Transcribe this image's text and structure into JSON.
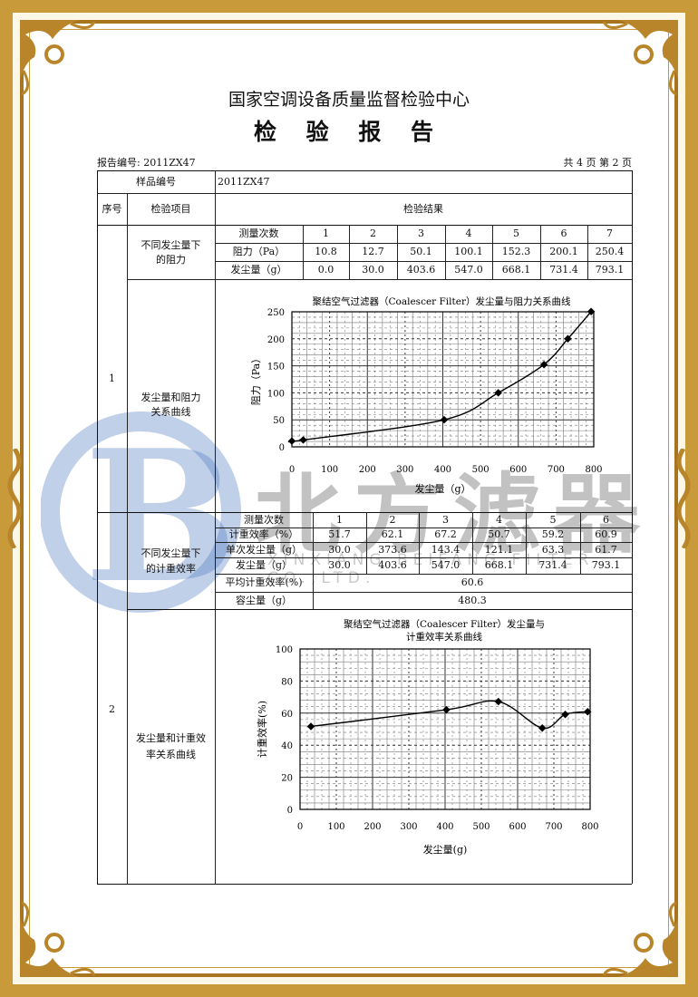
{
  "header": {
    "organization": "国家空调设备质量监督检验中心",
    "title": "检 验 报 告",
    "report_no": "报告编号: 2011ZX47",
    "page_info": "共 4 页 第 2 页"
  },
  "watermark": {
    "brand": "北方滤器",
    "company": "XINXIANG BEIFANG FILTER CO.,LTD."
  },
  "table": {
    "sample_no_label": "样品编号",
    "sample_no_value": "2011ZX47",
    "col_seq": "序号",
    "col_item": "检验项目",
    "col_result": "检验结果",
    "section1": {
      "seq": "1",
      "item1": "不同发尘量下\n的阻力",
      "item1_lines": [
        "不同发尘量下",
        "的阻力"
      ],
      "rows": [
        {
          "label": "测量次数",
          "values": [
            "1",
            "2",
            "3",
            "4",
            "5",
            "6",
            "7"
          ]
        },
        {
          "label": "阻力（Pa）",
          "values": [
            "10.8",
            "12.7",
            "50.1",
            "100.1",
            "152.3",
            "200.1",
            "250.4"
          ]
        },
        {
          "label": "发尘量（g）",
          "values": [
            "0.0",
            "30.0",
            "403.6",
            "547.0",
            "668.1",
            "731.4",
            "793.1"
          ]
        }
      ],
      "item2_lines": [
        "发尘量和阻力",
        "关系曲线"
      ]
    },
    "section2": {
      "seq": "2",
      "item1_lines": [
        "不同发尘量下",
        "的计重效率"
      ],
      "rows": [
        {
          "label": "测量次数",
          "values": [
            "1",
            "2",
            "3",
            "4",
            "5",
            "6"
          ]
        },
        {
          "label": "计重效率（%）",
          "values": [
            "51.7",
            "62.1",
            "67.2",
            "50.7",
            "59.2",
            "60.9"
          ]
        },
        {
          "label": "单次发尘量（g）",
          "values": [
            "30.0",
            "373.6",
            "143.4",
            "121.1",
            "63.3",
            "61.7"
          ]
        },
        {
          "label": "发尘量（g）",
          "values": [
            "30.0",
            "403.6",
            "547.0",
            "668.1",
            "731.4",
            "793.1"
          ]
        }
      ],
      "avg_label": "平均计重效率(%)",
      "avg_value": "60.6",
      "capacity_label": "容尘量（g）",
      "capacity_value": "480.3",
      "item2_lines": [
        "发尘量和计重效",
        "率关系曲线"
      ]
    }
  },
  "chart_data": [
    {
      "type": "line",
      "title": "聚结空气过滤器（Coalescer Filter）发尘量与阻力关系曲线",
      "xlabel": "发尘量（g）",
      "ylabel": "阻力（Pa）",
      "xlim": [
        0,
        800
      ],
      "ylim": [
        0,
        250
      ],
      "xticks": [
        "0",
        "100",
        "200",
        "300",
        "400",
        "500",
        "600",
        "700",
        "800"
      ],
      "yticks": [
        "0",
        "50",
        "100",
        "150",
        "200",
        "250"
      ],
      "grid": true,
      "x": [
        0.0,
        30.0,
        403.6,
        547.0,
        668.1,
        731.4,
        793.1
      ],
      "y": [
        10.8,
        12.7,
        50.1,
        100.1,
        152.3,
        200.1,
        250.4
      ]
    },
    {
      "type": "line",
      "title_lines": [
        "聚结空气过滤器（Coalescer Filter）发尘量与",
        "计重效率关系曲线"
      ],
      "xlabel": "发尘量(g)",
      "ylabel": "计重效率(%)",
      "xlim": [
        0,
        800
      ],
      "ylim": [
        0,
        100
      ],
      "xticks": [
        "0",
        "100",
        "200",
        "300",
        "400",
        "500",
        "600",
        "700",
        "800"
      ],
      "yticks": [
        "0",
        "20",
        "40",
        "60",
        "80",
        "100"
      ],
      "grid": true,
      "x": [
        30.0,
        403.6,
        547.0,
        668.1,
        731.4,
        793.1
      ],
      "y": [
        51.7,
        62.1,
        67.2,
        50.7,
        59.2,
        60.9
      ]
    }
  ],
  "colors": {
    "frame_gold": "#c99a3a",
    "frame_dark": "#a8741e",
    "logo_blue": "#4a78c0"
  }
}
